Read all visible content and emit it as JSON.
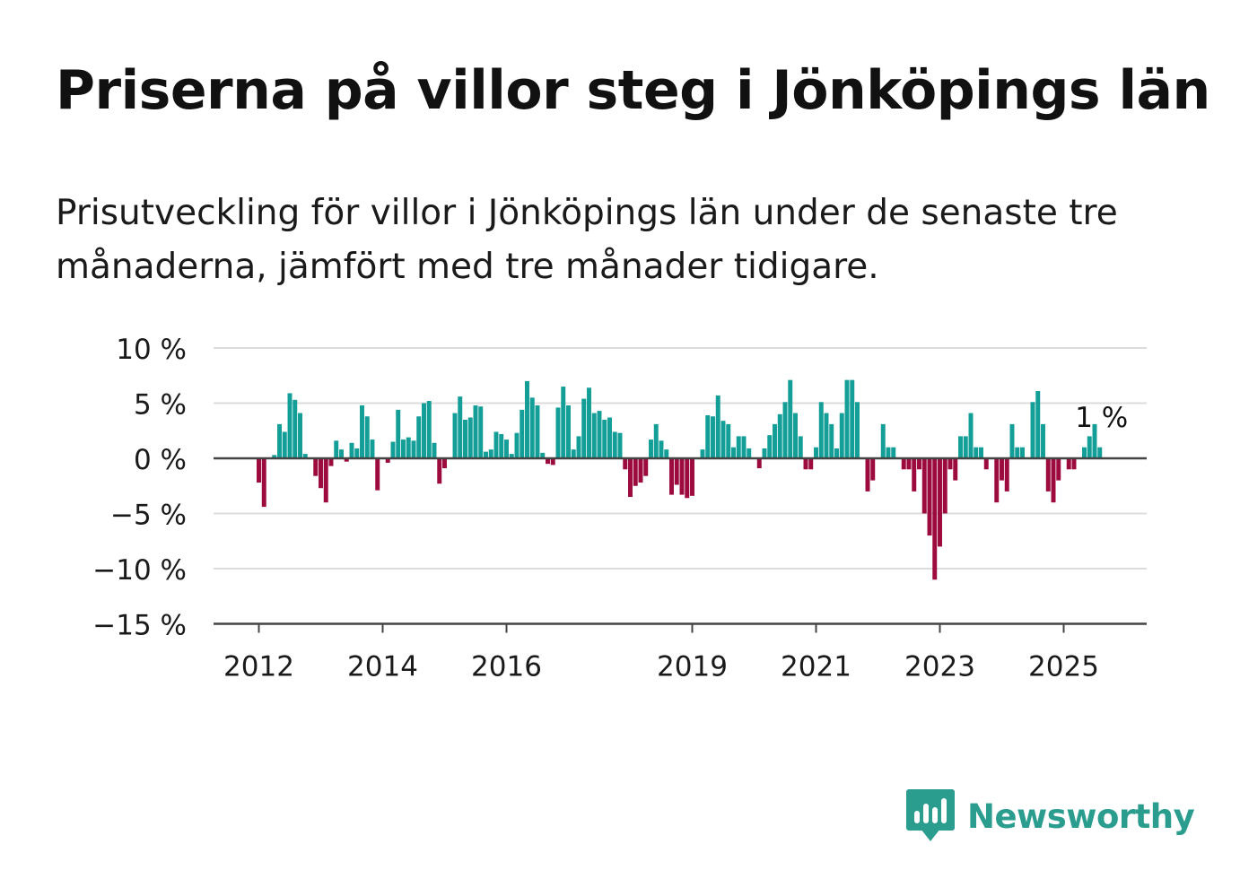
{
  "header": {
    "title": "Priserna på villor steg i Jönköpings län",
    "subtitle": "Prisutveckling för villor i Jönköpings län under de senaste tre månaderna, jämfört med tre månader tidigare."
  },
  "colors": {
    "positive": "#139e97",
    "negative": "#9c0a3e",
    "gridline": "#dcdcdc",
    "axis": "#444444",
    "text": "#1a1a1a",
    "brand": "#2a9d8f"
  },
  "logo": {
    "icon": "bar-chart-speech-bubble-icon",
    "name": "Newsworthy"
  },
  "chart_data": {
    "type": "bar",
    "x_start": "2011-09",
    "x_unit": "month",
    "ylim": [
      -15,
      10
    ],
    "yticks": [
      10,
      5,
      0,
      -5,
      -10,
      -15
    ],
    "ytick_labels": [
      "10 %",
      "5 %",
      "0 %",
      "−5 %",
      "−10 %",
      "−15 %"
    ],
    "xtick_labels": [
      "2012",
      "2014",
      "2016",
      "2019",
      "2021",
      "2023",
      "2025"
    ],
    "grid": true,
    "last_value_label": "1 %",
    "values": [
      0,
      0,
      0,
      0,
      -2.2,
      -4.4,
      0,
      0.3,
      3.1,
      2.4,
      5.9,
      5.3,
      4.1,
      0.4,
      0,
      -1.6,
      -2.7,
      -4,
      -0.7,
      1.6,
      0.8,
      -0.3,
      1.4,
      0.9,
      4.8,
      3.8,
      1.7,
      -2.9,
      0,
      -0.4,
      1.5,
      4.4,
      1.7,
      1.9,
      1.6,
      3.8,
      5.0,
      5.2,
      1.4,
      -2.3,
      -0.9,
      0,
      4.1,
      5.6,
      3.5,
      3.7,
      4.8,
      4.7,
      0.6,
      0.8,
      2.4,
      2.2,
      1.7,
      0.4,
      2.3,
      4.4,
      7.0,
      5.5,
      4.8,
      0.5,
      -0.5,
      -0.6,
      4.6,
      6.5,
      4.8,
      0.8,
      2.0,
      5.4,
      6.4,
      4.1,
      4.3,
      3.5,
      3.7,
      2.4,
      2.3,
      -1.0,
      -3.5,
      -2.5,
      -2.2,
      -1.6,
      1.7,
      3.1,
      1.6,
      0.8,
      -3.3,
      -2.4,
      -3.3,
      -3.6,
      -3.4,
      0,
      0.8,
      3.9,
      3.8,
      5.7,
      3.4,
      3.1,
      1.0,
      2.0,
      2.0,
      0.9,
      0,
      -0.9,
      0.9,
      2.1,
      3.1,
      4.0,
      5.1,
      7.1,
      4.1,
      2.0,
      -1.0,
      -1.0,
      1.0,
      5.1,
      4.1,
      3.1,
      0.9,
      4.1,
      7.1,
      7.1,
      5.1,
      0,
      -3.0,
      -2.0,
      0,
      3.1,
      1.0,
      1.0,
      0,
      -1.0,
      -1.0,
      -3.0,
      -1.0,
      -5.0,
      -7.0,
      -11.0,
      -8.0,
      -5.0,
      -1.0,
      -2.0,
      2.0,
      2.0,
      4.1,
      1.0,
      1.0,
      -1.0,
      0,
      -4.0,
      -2.0,
      -3.0,
      3.1,
      1.0,
      1.0,
      0,
      5.1,
      6.1,
      3.1,
      -3.0,
      -4.0,
      -2.0,
      0,
      -1.0,
      -1.0,
      0,
      1.0,
      2.0,
      3.1,
      1.0
    ]
  }
}
